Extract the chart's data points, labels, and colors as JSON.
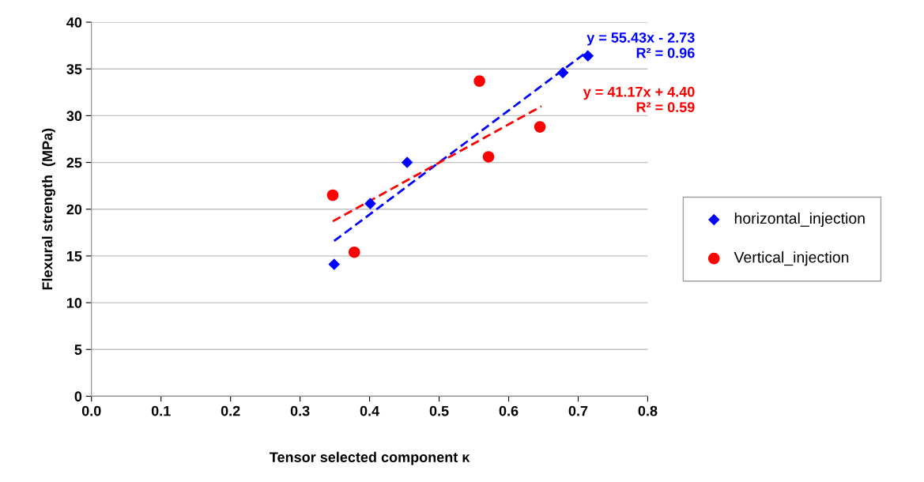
{
  "chart_data": {
    "type": "scatter",
    "xlabel": "Tensor selected component κ",
    "ylabel": "Flexural strength  (MPa)",
    "xlim": [
      0,
      0.8
    ],
    "xticks": [
      {
        "value": 0,
        "label": "0.0"
      },
      0.1,
      0.2,
      0.3,
      0.4,
      0.5,
      0.6,
      0.7,
      0.8
    ],
    "ylim": [
      0,
      40
    ],
    "yticks": [
      0,
      5,
      10,
      15,
      20,
      25,
      30,
      35,
      40
    ],
    "grid": "y",
    "legend": "right",
    "series": [
      {
        "name": "horizontal_injection",
        "color": "#0000ff",
        "marker": "diamond",
        "x": [
          0.349,
          0.401,
          0.454,
          0.678,
          0.714
        ],
        "values": [
          14.1,
          20.6,
          25.0,
          34.6,
          36.4
        ]
      },
      {
        "name": "Vertical_injection",
        "color": "#ff0000",
        "marker": "circle",
        "x": [
          0.347,
          0.378,
          0.558,
          0.571,
          0.645
        ],
        "values": [
          21.5,
          15.4,
          33.7,
          25.6,
          28.8
        ]
      },
      {
        "type": "line",
        "color": "#0000ff",
        "line_style": "dashed",
        "marker": "none",
        "x": [
          0.349,
          0.714
        ],
        "values": [
          16.6,
          36.9
        ]
      },
      {
        "type": "line",
        "color": "#ff0000",
        "line_style": "dashed",
        "marker": "none",
        "x": [
          0.347,
          0.647
        ],
        "values": [
          18.7,
          31.0
        ]
      }
    ],
    "annotations": [
      "y = 55.43x - 2.73\nR² = 0.96",
      "y = 41.17x + 4.40\nR² = 0.59"
    ]
  }
}
